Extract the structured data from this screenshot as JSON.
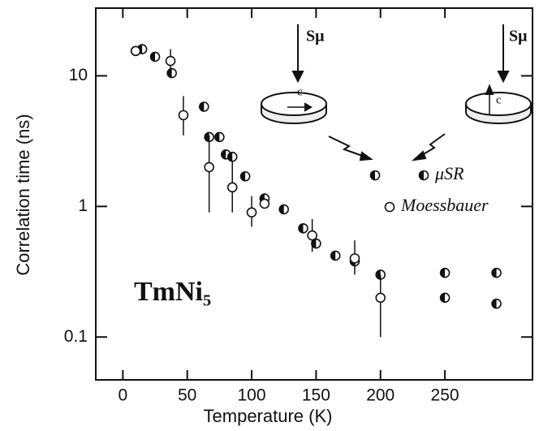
{
  "chart_data": {
    "type": "scatter",
    "xlabel": "Temperature (K)",
    "ylabel": "Correlation time (ns)",
    "annotation": "TmNi₅",
    "inset_labels": [
      "Sμ",
      "c",
      "Sμ",
      "c"
    ],
    "xlim": [
      -21,
      318
    ],
    "ylim": [
      0.047,
      33
    ],
    "xticks": [
      0,
      50,
      100,
      150,
      200,
      250
    ],
    "yticks": [
      0.1,
      1,
      10
    ],
    "log_y": true,
    "series": [
      {
        "name": "μSR",
        "color": "#111111",
        "marker": "half",
        "x": [
          10,
          15,
          25,
          38,
          63,
          67,
          75,
          80,
          85,
          95,
          110,
          125,
          140,
          150,
          165,
          180,
          200,
          250,
          250,
          290,
          290
        ],
        "values": [
          15.5,
          16,
          14,
          10.5,
          5.8,
          3.4,
          3.4,
          2.5,
          2.4,
          1.7,
          1.15,
          0.95,
          0.68,
          0.52,
          0.42,
          0.38,
          0.3,
          0.31,
          0.2,
          0.31,
          0.18
        ]
      },
      {
        "name": "Moessbauer",
        "color": "#111111",
        "marker": "open",
        "x": [
          10,
          37,
          47,
          67,
          85,
          100,
          110,
          147,
          180,
          200
        ],
        "values": [
          15.5,
          13,
          5,
          2,
          1.4,
          0.9,
          1.05,
          0.6,
          0.4,
          0.2
        ],
        "lower": [
          null,
          10,
          3.5,
          0.9,
          0.9,
          0.7,
          null,
          0.45,
          0.3,
          0.1
        ],
        "upper": [
          null,
          16,
          7,
          3.5,
          2.2,
          1.2,
          null,
          0.8,
          0.55,
          0.3
        ]
      }
    ]
  }
}
